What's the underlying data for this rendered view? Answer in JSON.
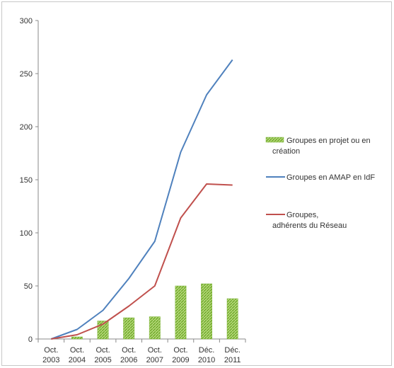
{
  "chart_data": {
    "type": "bar",
    "categories": [
      [
        "Oct.",
        "2003"
      ],
      [
        "Oct.",
        "2004"
      ],
      [
        "Oct.",
        "2005"
      ],
      [
        "Oct.",
        "2006"
      ],
      [
        "Oct.",
        "2007"
      ],
      [
        "Oct.",
        "2009"
      ],
      [
        "Déc.",
        "2010"
      ],
      [
        "Déc.",
        "2011"
      ]
    ],
    "ylim": [
      0,
      300
    ],
    "yticks": [
      "0",
      "50",
      "100",
      "150",
      "200",
      "250",
      "300"
    ],
    "grid": false,
    "legend_placement": "right",
    "series": [
      {
        "name": "Groupes en projet ou en création",
        "type": "bar",
        "color": "#8dc63f",
        "values": [
          0,
          2,
          17,
          20,
          21,
          50,
          52,
          38
        ]
      },
      {
        "name": "Groupes en AMAP en IdF",
        "type": "line",
        "color": "#4f81bd",
        "values": [
          0,
          9,
          27,
          57,
          92,
          176,
          230,
          263
        ]
      },
      {
        "name": "Groupes, adhérents du Réseau",
        "type": "line",
        "color": "#c0504d",
        "values": [
          0,
          4,
          14,
          31,
          50,
          114,
          146,
          145
        ]
      }
    ]
  },
  "legend": {
    "items": [
      {
        "lines": [
          "Groupes en projet ou en",
          "création"
        ],
        "marker": "bar",
        "color": "#8dc63f"
      },
      {
        "lines": [
          "Groupes en AMAP en IdF"
        ],
        "marker": "line",
        "color": "#4f81bd"
      },
      {
        "lines": [
          "Groupes,",
          "adhérents du Réseau"
        ],
        "marker": "line",
        "color": "#c0504d"
      }
    ]
  }
}
